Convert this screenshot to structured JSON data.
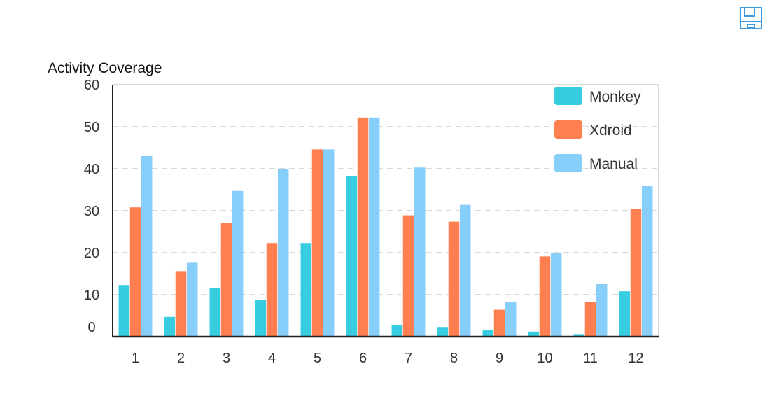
{
  "toolbar": {
    "save_icon": "save-icon"
  },
  "chart_data": {
    "type": "bar",
    "title": "Activity Coverage",
    "xlabel": "",
    "ylabel": "",
    "categories": [
      "1",
      "2",
      "3",
      "4",
      "5",
      "6",
      "7",
      "8",
      "9",
      "10",
      "11",
      "12"
    ],
    "ylim": [
      0,
      60
    ],
    "y_ticks": [
      "0",
      "10",
      "20",
      "30",
      "40",
      "50",
      "60"
    ],
    "grid": true,
    "legend_position": "top-right",
    "series": [
      {
        "name": "Monkey",
        "color": "#37cde0",
        "values": [
          12.3,
          4.7,
          11.6,
          8.8,
          22.3,
          38.3,
          2.8,
          2.3,
          1.5,
          1.2,
          0.6,
          10.8
        ]
      },
      {
        "name": "Xdroid",
        "color": "#ff7f50",
        "values": [
          30.8,
          15.6,
          27.1,
          22.3,
          44.6,
          52.2,
          28.9,
          27.4,
          6.4,
          19.1,
          8.3,
          30.5
        ]
      },
      {
        "name": "Manual",
        "color": "#87cefa",
        "values": [
          43.0,
          17.6,
          34.7,
          39.9,
          44.6,
          52.2,
          40.3,
          31.4,
          8.2,
          20.0,
          12.5,
          35.9
        ]
      }
    ]
  }
}
